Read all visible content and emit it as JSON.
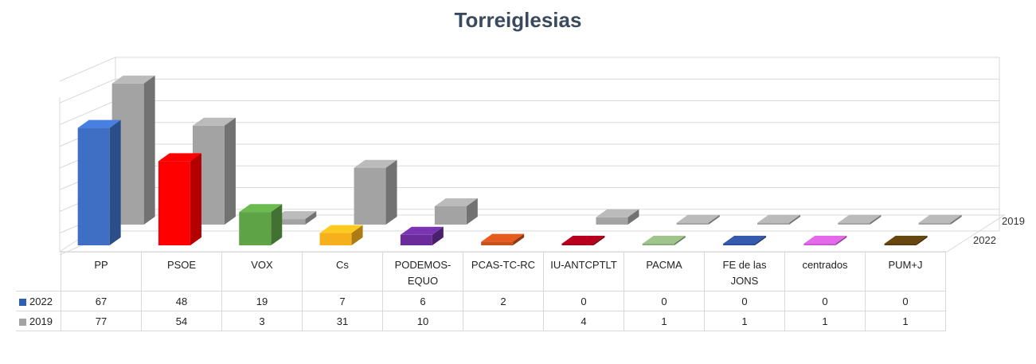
{
  "chart_data": {
    "type": "bar",
    "title": "Torreiglesias",
    "categories": [
      "PP",
      "PSOE",
      "VOX",
      "Cs",
      "PODEMOS-EQUO",
      "PCAS-TC-RC",
      "IU-ANTCPTLT",
      "PACMA",
      "FE de las JONS",
      "centrados",
      "PUM+J"
    ],
    "category_labels": [
      "PP",
      "PSOE",
      "VOX",
      "Cs",
      "PODEMOS-\nEQUO",
      "PCAS-TC-RC",
      "IU-ANTCPTLT",
      "PACMA",
      "FE de las\nJONS",
      "centrados",
      "PUM+J"
    ],
    "series": [
      {
        "name": "2022",
        "values": [
          67,
          48,
          19,
          7,
          6,
          2,
          0,
          0,
          0,
          0,
          0
        ]
      },
      {
        "name": "2019",
        "values": [
          77,
          54,
          3,
          31,
          10,
          null,
          4,
          1,
          1,
          1,
          1
        ]
      }
    ],
    "bar_colors_2022": [
      "#3e6fc4",
      "#ff0000",
      "#5ea346",
      "#f5b01c",
      "#6a2c9a",
      "#c8501a",
      "#a0001a",
      "#8aab7a",
      "#2f4e96",
      "#c65ccc",
      "#5a3d0e"
    ],
    "bar_color_2019": "#a3a3a3",
    "legend_swatch_colors": {
      "2022": "#2f5fb0",
      "2019": "#a3a3a3"
    },
    "depth_labels": [
      "2019",
      "2022"
    ],
    "ylim": [
      0,
      80
    ],
    "grid": true,
    "legend": "table-below"
  }
}
